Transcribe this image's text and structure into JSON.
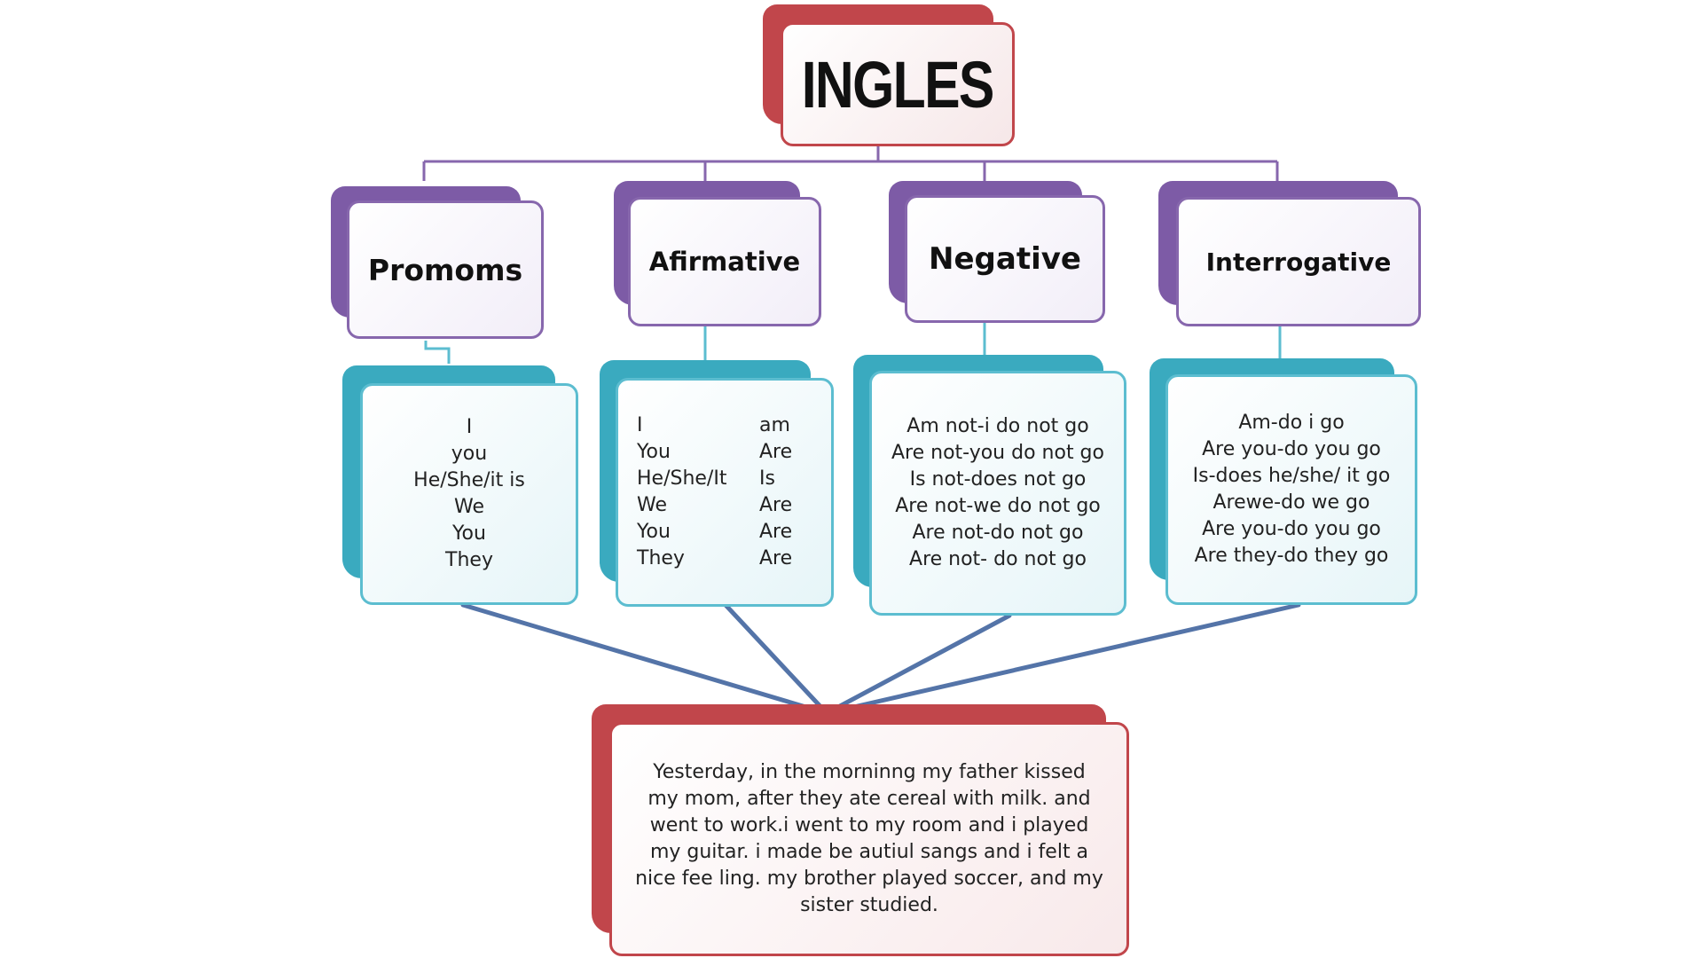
{
  "title": "INGLES",
  "headers": [
    "Promoms",
    "Afirmative",
    "Negative",
    "Interrogative"
  ],
  "pronouns": [
    "I",
    "you",
    "He/She/it is",
    "We",
    "You",
    "They"
  ],
  "affirmative": [
    {
      "subject": "I",
      "verb": "am"
    },
    {
      "subject": "You",
      "verb": "Are"
    },
    {
      "subject": "He/She/It",
      "verb": "Is"
    },
    {
      "subject": "We",
      "verb": "Are"
    },
    {
      "subject": "You",
      "verb": "Are"
    },
    {
      "subject": "They",
      "verb": "Are"
    }
  ],
  "negative": [
    "Am not-i do not go",
    "Are not-you do not go",
    "Is not-does not go",
    "Are not-we do not go",
    "Are not-do not go",
    "Are not- do not go"
  ],
  "interrogative": [
    "Am-do i go",
    "Are you-do you go",
    "Is-does he/she/ it go",
    "Arewe-do we go",
    "Are you-do you go",
    "Are they-do they go"
  ],
  "story": "Yesterday, in the morninng my father kissed my mom, after they ate cereal with milk. and went to work.i went to my room and i played my guitar. i made be autiul sangs and i felt a nice fee ling. my brother played soccer, and my sister studied.",
  "colors": {
    "title_accent": "#c1464b",
    "header_accent": "#7d5ba6",
    "content_accent": "#3aaabf",
    "connector_purple": "#8767ad",
    "connector_teal": "#5cbdd0",
    "connector_blue": "#5474a8"
  }
}
